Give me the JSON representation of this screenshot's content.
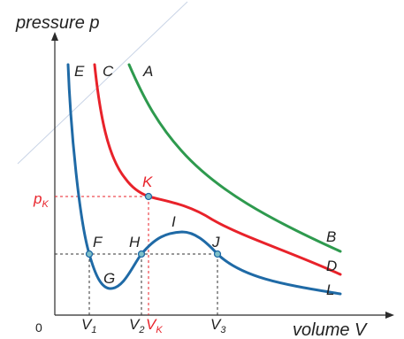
{
  "axes": {
    "y_label": "pressure p",
    "x_label": "volume V",
    "origin": "0"
  },
  "colors": {
    "axis": "#2b2b2b",
    "guide_line": "#c9d4e6",
    "curve_A": "#2e9a4e",
    "curve_C": "#e8222a",
    "curve_E": "#1f6aa6",
    "critical": "#e8222a",
    "dashed_black": "#333333",
    "point_fill": "#7fc0c8"
  },
  "curves": {
    "A": {
      "start": "A",
      "end": "B"
    },
    "C": {
      "start": "C",
      "end": "D"
    },
    "E": {
      "start": "E",
      "end": "L"
    }
  },
  "points": {
    "K": "K",
    "F": "F",
    "G": "G",
    "H": "H",
    "I": "I",
    "J": "J"
  },
  "ticks": {
    "pK": {
      "main": "p",
      "sub": "K"
    },
    "V1": {
      "main": "V",
      "sub": "1"
    },
    "V2": {
      "main": "V",
      "sub": "2"
    },
    "VK": {
      "main": "V",
      "sub": "K"
    },
    "V3": {
      "main": "V",
      "sub": "3"
    }
  }
}
